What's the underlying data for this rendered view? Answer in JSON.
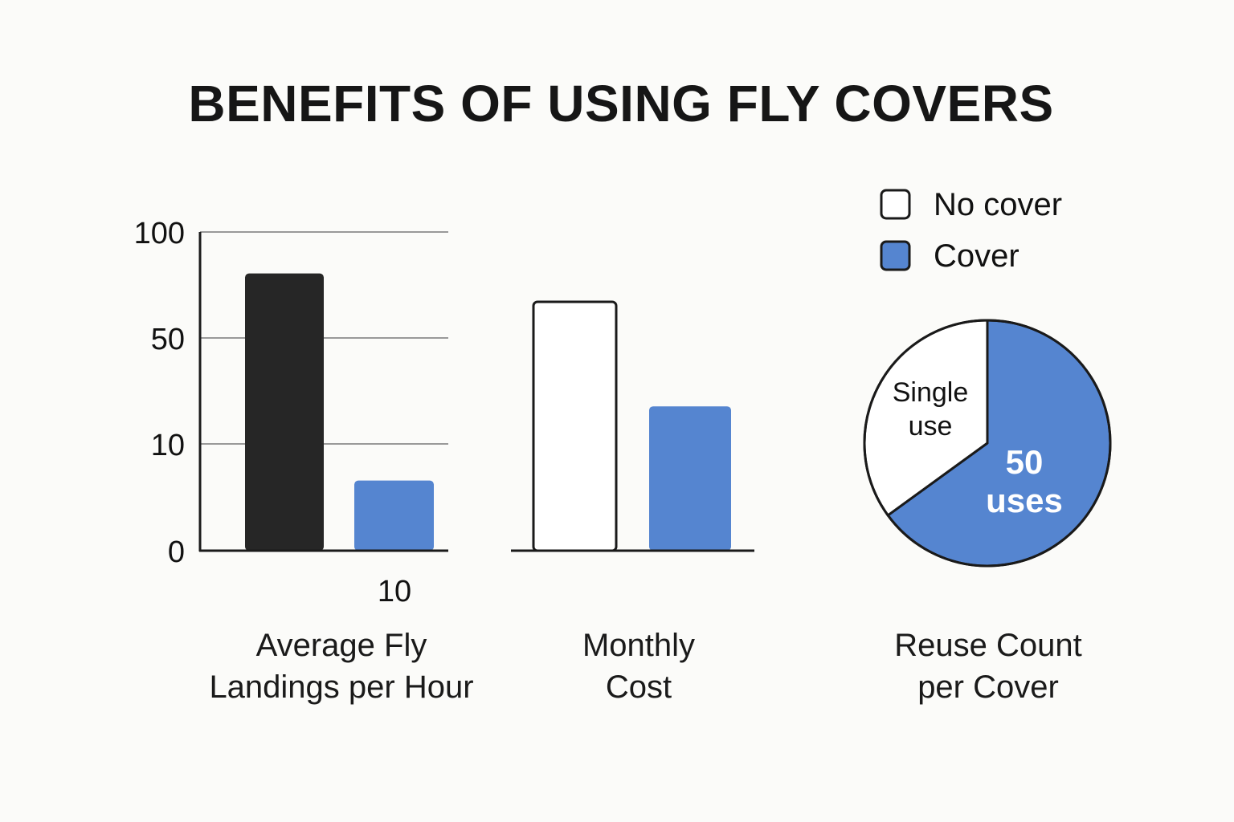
{
  "title": "BENEFITS OF USING FLY COVERS",
  "colors": {
    "no_cover_dark": "#262626",
    "no_cover_outline": "#ffffff",
    "cover": "#5585d0",
    "axis": "#1a1a1a",
    "grid": "#999999",
    "background": "#fbfbf9"
  },
  "legend": {
    "position": "top-right",
    "items": [
      {
        "label": "No cover",
        "color": "#ffffff"
      },
      {
        "label": "Cover",
        "color": "#5585d0"
      }
    ]
  },
  "chart_data": [
    {
      "type": "bar",
      "title": "Average Fly\nLandings per Hour",
      "y_ticks": [
        "0",
        "10",
        "50",
        "100"
      ],
      "x_tick_label": "10",
      "grid": true,
      "series": [
        {
          "name": "No cover",
          "value": 87,
          "color": "#262626"
        },
        {
          "name": "Cover",
          "value": 22,
          "color": "#5585d0"
        }
      ]
    },
    {
      "type": "bar",
      "title": "Monthly\nCost",
      "grid": false,
      "series": [
        {
          "name": "No cover",
          "value": 100,
          "color": "#ffffff"
        },
        {
          "name": "Cover",
          "value": 58,
          "color": "#5585d0"
        }
      ]
    },
    {
      "type": "pie",
      "title": "Reuse Count\nper Cover",
      "slices": [
        {
          "label": "Single\nuse",
          "value": 1,
          "share": 0.35,
          "color": "#ffffff"
        },
        {
          "label": "50\nuses",
          "value": 50,
          "share": 0.65,
          "color": "#5585d0"
        }
      ]
    }
  ]
}
